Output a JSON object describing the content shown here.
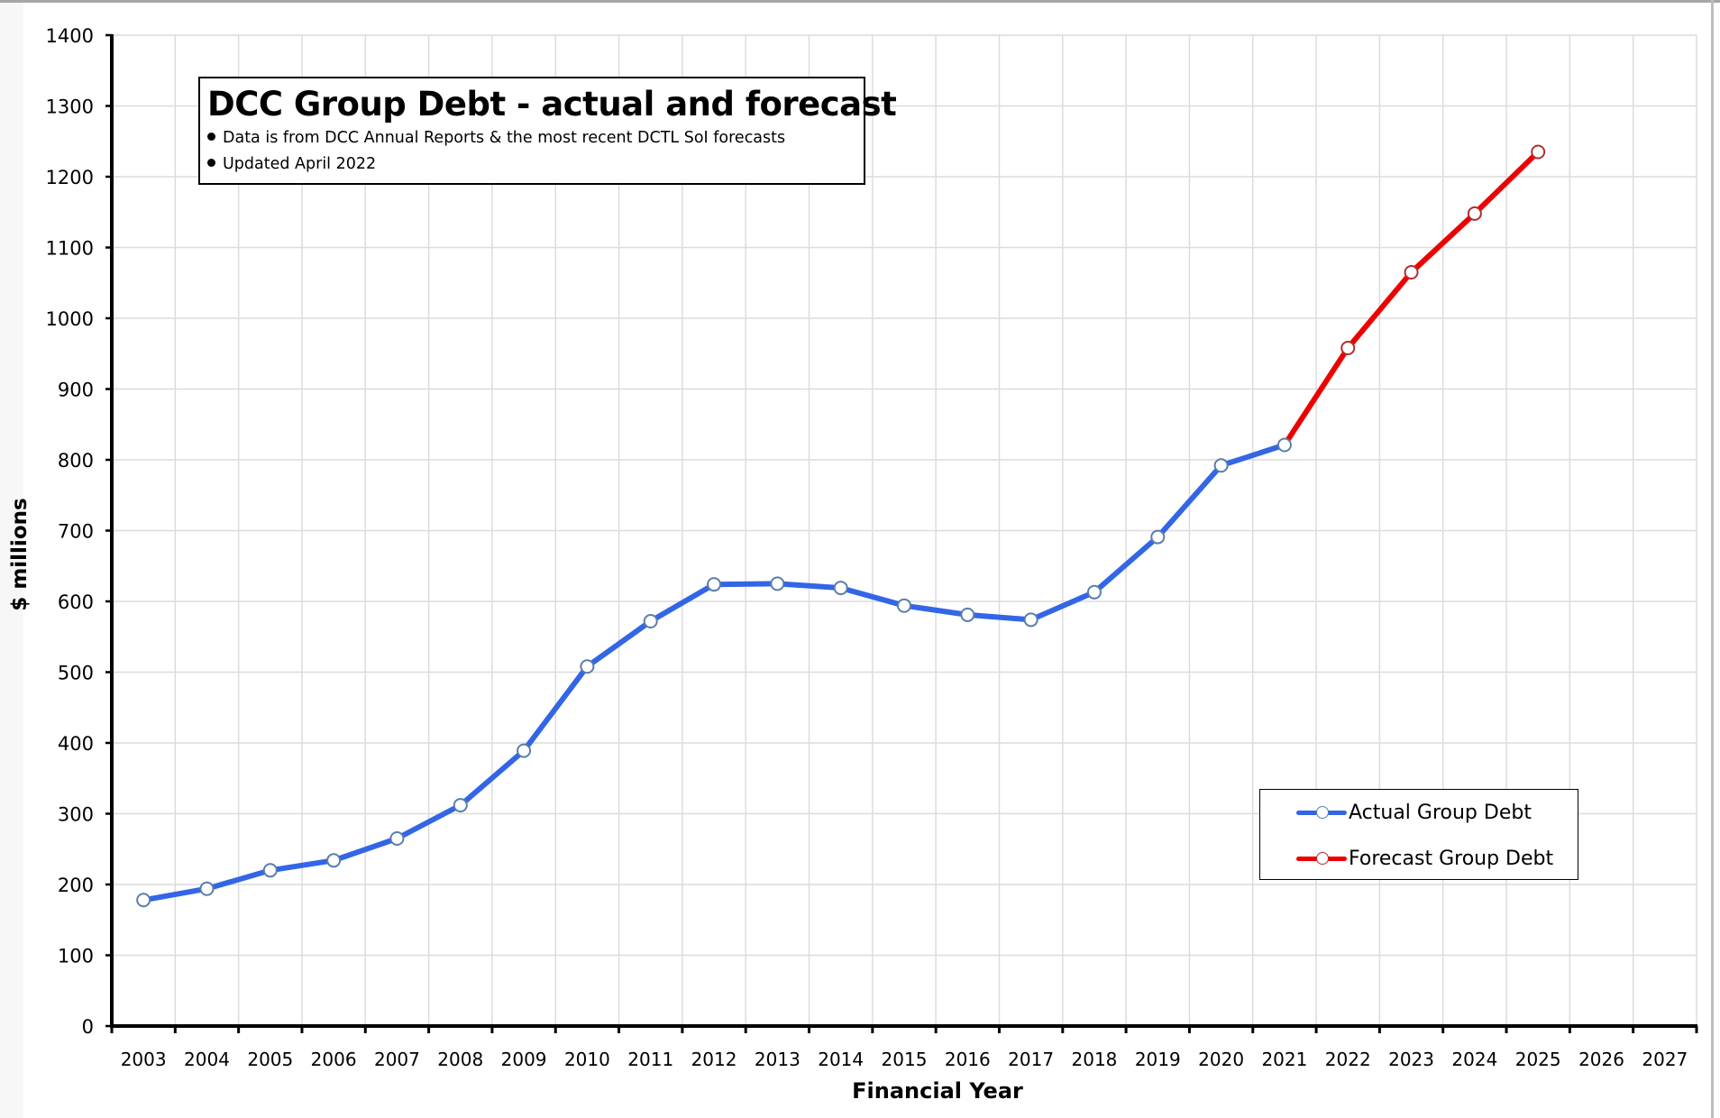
{
  "chart_data": {
    "type": "line",
    "title": "DCC Group Debt - actual and forecast",
    "notes": [
      "Data is from DCC Annual Reports & the most recent  DCTL SoI forecasts",
      "Updated April 2022"
    ],
    "xlabel": "Financial Year",
    "ylabel": "$ millions",
    "categories": [
      "2003",
      "2004",
      "2005",
      "2006",
      "2007",
      "2008",
      "2009",
      "2010",
      "2011",
      "2012",
      "2013",
      "2014",
      "2015",
      "2016",
      "2017",
      "2018",
      "2019",
      "2020",
      "2021",
      "2022",
      "2023",
      "2024",
      "2025",
      "2026",
      "2027"
    ],
    "ylim": [
      0,
      1400
    ],
    "yticks": [
      "0",
      "100",
      "200",
      "300",
      "400",
      "500",
      "600",
      "700",
      "800",
      "900",
      "1000",
      "1100",
      "1200",
      "1300",
      "1400"
    ],
    "grid": true,
    "legend_position": "bottom-right",
    "series": [
      {
        "name": "Actual Group Debt",
        "color": "#3366e6",
        "values": [
          178,
          194,
          220,
          234,
          265,
          312,
          389,
          508,
          572,
          624,
          625,
          619,
          594,
          581,
          574,
          613,
          691,
          792,
          821,
          null,
          null,
          null,
          null,
          null,
          null
        ]
      },
      {
        "name": "Forecast Group Debt",
        "color": "#ee0000",
        "values": [
          null,
          null,
          null,
          null,
          null,
          null,
          null,
          null,
          null,
          null,
          null,
          null,
          null,
          null,
          null,
          null,
          null,
          null,
          821,
          958,
          1065,
          1148,
          1235,
          null,
          null
        ]
      }
    ]
  }
}
